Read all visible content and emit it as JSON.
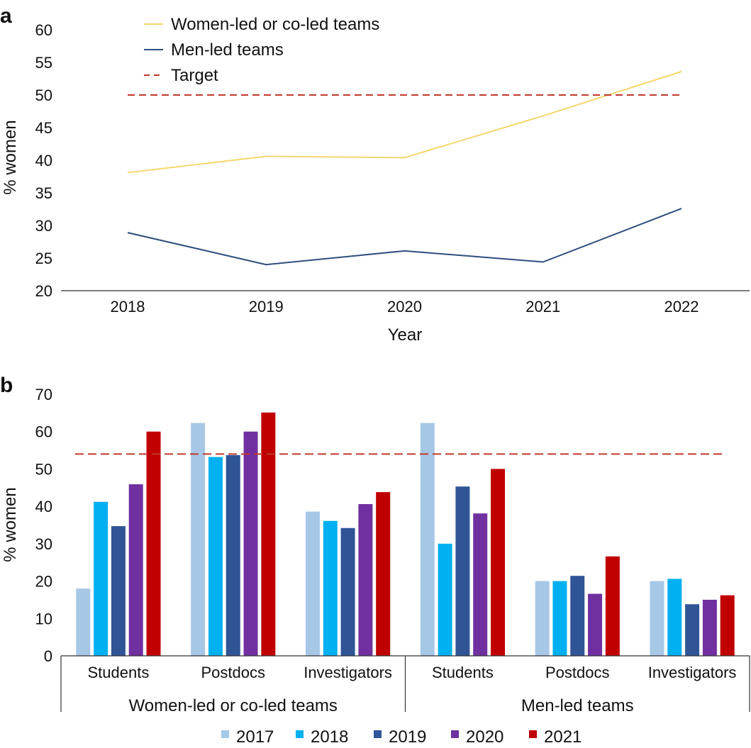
{
  "panel_labels": {
    "a": "a",
    "b": "b"
  },
  "chart_data": [
    {
      "type": "line",
      "panel": "a",
      "x": [
        "2018",
        "2019",
        "2020",
        "2021",
        "2022"
      ],
      "xlabel": "Year",
      "ylabel": "% women",
      "ylim": [
        20,
        60
      ],
      "yticks": [
        "20",
        "25",
        "30",
        "35",
        "40",
        "45",
        "50",
        "55",
        "60"
      ],
      "grid": false,
      "legend_position": "top-left",
      "series": [
        {
          "name": "Women-led or co-led teams",
          "values": [
            38.1,
            40.6,
            40.4,
            46.8,
            53.6
          ],
          "color": "#F5D76E",
          "style": "solid"
        },
        {
          "name": "Men-led teams",
          "values": [
            28.9,
            24.0,
            26.1,
            24.4,
            32.6
          ],
          "color": "#2E4E7E",
          "style": "solid"
        },
        {
          "name": "Target",
          "values": [
            50,
            50,
            50,
            50,
            50
          ],
          "color": "#C0392B",
          "style": "dashed"
        }
      ]
    },
    {
      "type": "bar",
      "panel": "b",
      "ylabel": "% women",
      "ylim": [
        0,
        70
      ],
      "yticks": [
        "0",
        "10",
        "20",
        "30",
        "40",
        "50",
        "60",
        "70"
      ],
      "grid": false,
      "target": 54,
      "target_color": "#C0392B",
      "groups": [
        "Women-led or co-led teams",
        "Men-led teams"
      ],
      "categories": [
        "Students",
        "Postdocs",
        "Investigators",
        "Students",
        "Postdocs",
        "Investigators"
      ],
      "legend_position": "bottom",
      "series": [
        {
          "name": "2017",
          "color": "#A7C7E7",
          "values": [
            18,
            62.3,
            38.6,
            62.3,
            20,
            20
          ]
        },
        {
          "name": "2018",
          "color": "#00B0F0",
          "values": [
            41.2,
            53.2,
            36.1,
            30,
            20,
            20.6
          ]
        },
        {
          "name": "2019",
          "color": "#2F5597",
          "values": [
            34.7,
            53.7,
            34.2,
            45.3,
            21.4,
            13.8
          ]
        },
        {
          "name": "2020",
          "color": "#7030A0",
          "values": [
            45.9,
            60,
            40.6,
            38.1,
            16.6,
            15
          ]
        },
        {
          "name": "2021",
          "color": "#C00000",
          "values": [
            60,
            65.1,
            43.8,
            50,
            26.6,
            16.2
          ]
        }
      ]
    }
  ]
}
